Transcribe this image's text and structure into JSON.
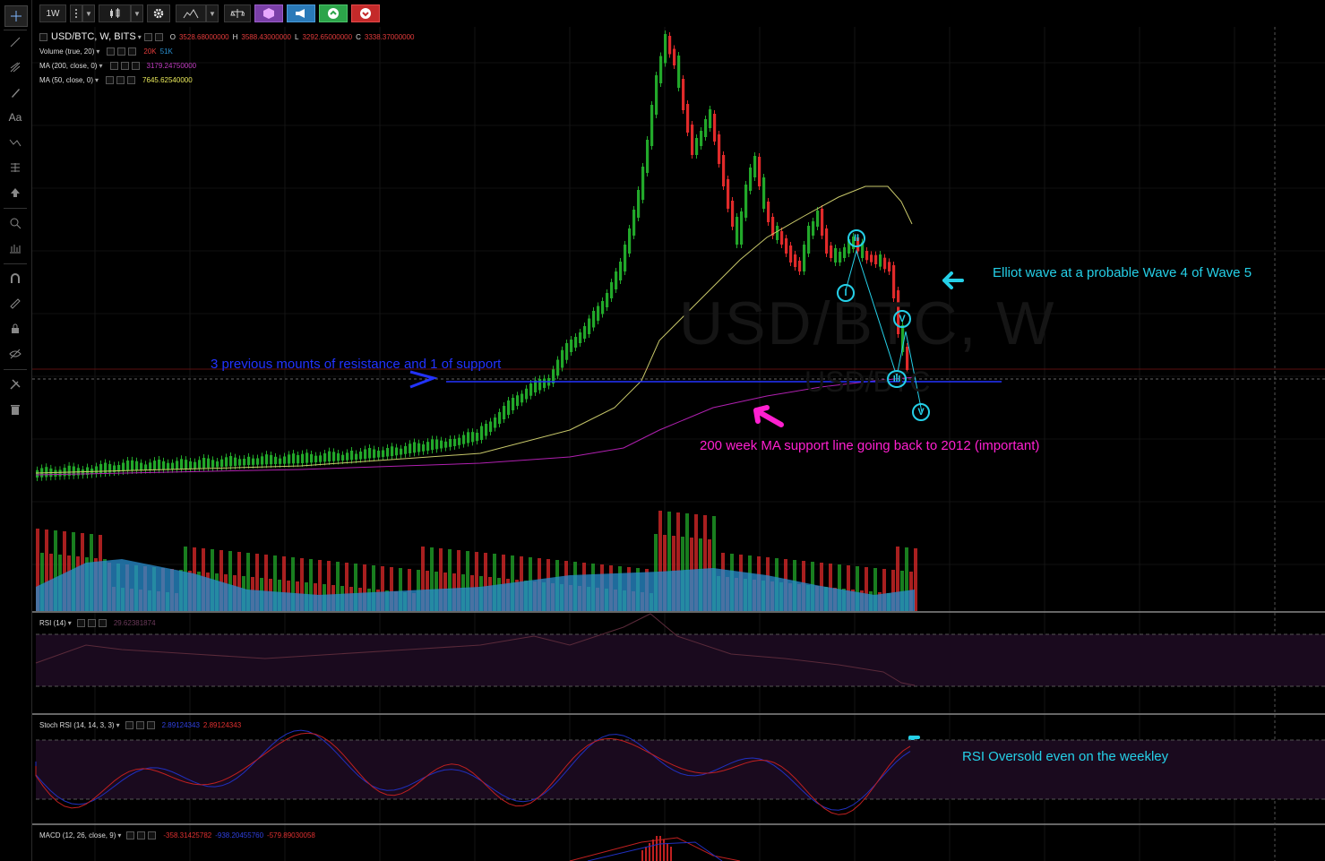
{
  "toolbar": {
    "interval": "1W",
    "items": [
      "interval",
      "interval-dropdown",
      "chart-type",
      "chart-type-dropdown",
      "settings",
      "indicators",
      "indicators-dropdown",
      "compare",
      "templates",
      "alert",
      "buy",
      "sell"
    ]
  },
  "sidebar": {
    "tools": [
      "crosshair-icon",
      "trend-line-icon",
      "pitchfork-icon",
      "brush-icon",
      "text-icon",
      "pattern-icon",
      "measure-icon",
      "arrow-up-icon",
      "zoom-icon",
      "bar-pattern-icon",
      "magnet-icon",
      "ruler-icon",
      "lock-icon",
      "eye-icon",
      "tools-icon",
      "trash-icon"
    ],
    "text_tool_label": "Aa"
  },
  "legend": {
    "symbol": "USD/BTC, W, BITS",
    "ohlc": {
      "o_label": "O",
      "o": "3528.68000000",
      "h_label": "H",
      "h": "3588.43000000",
      "l_label": "L",
      "l": "3292.65000000",
      "c_label": "C",
      "c": "3338.37000000"
    },
    "volume": {
      "label": "Volume (true, 20)",
      "v1": "20K",
      "v2": "51K"
    },
    "ma200": {
      "label": "MA (200, close, 0)",
      "value": "3179.24750000"
    },
    "ma50": {
      "label": "MA (50, close, 0)",
      "value": "7645.62540000"
    }
  },
  "watermark": {
    "big": "USD/BTC, W",
    "small": "USD/BTC"
  },
  "annotations": {
    "elliot": "Elliot wave at a probable Wave 4 of Wave 5",
    "resistance": "3 previous mounts of resistance and 1 of support",
    "ma200": "200 week MA support line going back to 2012 (important)",
    "rsi_oversold": "RSI Oversold even on the weekley"
  },
  "wave_labels": {
    "w1": "I",
    "w2": "II",
    "w3": "III",
    "w4": "V",
    "w5": "V"
  },
  "rsi": {
    "label": "RSI (14)",
    "value": "29.62381874"
  },
  "stoch": {
    "label": "Stoch RSI (14, 14, 3, 3)",
    "k": "2.89124343",
    "d": "2.89124343"
  },
  "macd": {
    "label": "MACD (12, 26, close, 9)",
    "v1": "-358.31425782",
    "v2": "-938.20455760",
    "v3": "-579.89030058"
  },
  "colors": {
    "up": "#22a82a",
    "down": "#e02a2a",
    "ma50": "#c8c86a",
    "ma200": "#b020b0",
    "cyan": "#25d0e8",
    "magenta": "#ff20d0",
    "blue": "#2233ff",
    "volume_ma": "#2a8fd0",
    "rsi_band": "#1a0a1e",
    "rsi_line": "#5a2a3a",
    "stoch_k": "#2030c0",
    "stoch_d": "#c02020"
  }
}
